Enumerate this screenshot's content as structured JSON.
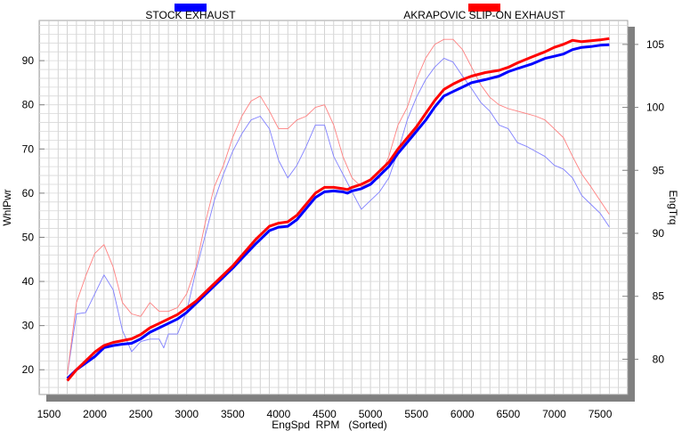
{
  "chart_data": {
    "type": "line",
    "title": "",
    "xlabel": "EngSpd  RPM   (Sorted)",
    "ylabel_left": "WhlPwr",
    "ylabel_right": "EngTrq",
    "xlim": [
      1394,
      7800
    ],
    "ylim_left": [
      14.4,
      99.1
    ],
    "ylim_right": [
      77.2,
      106.9
    ],
    "x_ticks": [
      1500,
      2000,
      2500,
      3000,
      3500,
      4000,
      4500,
      5000,
      5500,
      6000,
      6500,
      7000,
      7500
    ],
    "y_left_ticks": [
      20,
      30,
      40,
      50,
      60,
      70,
      80,
      90
    ],
    "y_right_ticks": [
      80,
      85,
      90,
      95,
      100,
      105
    ],
    "grid": true,
    "legend": [
      {
        "label": "STOCK EXHAUST",
        "color": "#0000ff"
      },
      {
        "label": "AKRAPOVIC SLIP-ON EXHAUST",
        "color": "#ff0000"
      }
    ],
    "legend_position": "top",
    "series": [
      {
        "name": "STOCK EXHAUST WhlPwr",
        "axis": "left",
        "color": "#0000ff",
        "width": "thick",
        "x": [
          1700,
          1800,
          1900,
          2000,
          2100,
          2200,
          2300,
          2400,
          2500,
          2600,
          2700,
          2800,
          2900,
          3000,
          3100,
          3250,
          3500,
          3750,
          3900,
          4000,
          4100,
          4200,
          4300,
          4400,
          4500,
          4600,
          4700,
          4750,
          4800,
          4900,
          5000,
          5100,
          5200,
          5300,
          5400,
          5500,
          5600,
          5700,
          5800,
          5900,
          6000,
          6100,
          6250,
          6400,
          6500,
          6600,
          6750,
          6900,
          7000,
          7100,
          7200,
          7300,
          7400,
          7500,
          7600
        ],
        "y": [
          18,
          20,
          21.5,
          23,
          25,
          25.5,
          25.8,
          26,
          27,
          28.5,
          29.5,
          30.5,
          31.5,
          33,
          35,
          38,
          43,
          48.5,
          51.5,
          52.3,
          52.5,
          54,
          56.5,
          59,
          60.3,
          60.5,
          60.3,
          60,
          60.5,
          61,
          62,
          64,
          66,
          69,
          71.5,
          74,
          76.5,
          79.5,
          82,
          83,
          84,
          85,
          85.7,
          86.5,
          87.5,
          88.2,
          89.2,
          90.5,
          91,
          91.5,
          92.5,
          93,
          93.2,
          93.5,
          93.6
        ]
      },
      {
        "name": "AKRAPOVIC SLIP-ON EXHAUST WhlPwr",
        "axis": "left",
        "color": "#ff0000",
        "width": "thick",
        "x": [
          1700,
          1800,
          1900,
          2000,
          2100,
          2200,
          2300,
          2400,
          2500,
          2600,
          2700,
          2800,
          2900,
          3000,
          3100,
          3250,
          3500,
          3750,
          3900,
          4000,
          4100,
          4200,
          4300,
          4400,
          4500,
          4600,
          4700,
          4750,
          4800,
          4900,
          5000,
          5100,
          5200,
          5300,
          5400,
          5500,
          5600,
          5700,
          5800,
          5900,
          6000,
          6100,
          6250,
          6400,
          6500,
          6600,
          6750,
          6900,
          7000,
          7100,
          7200,
          7300,
          7400,
          7500,
          7600
        ],
        "y": [
          17.5,
          20,
          22,
          24,
          25.5,
          26.2,
          26.6,
          27,
          28,
          29.5,
          30.5,
          31.5,
          32.5,
          34,
          35.5,
          38.5,
          43.5,
          49.5,
          52.5,
          53.2,
          53.5,
          55,
          57.5,
          60,
          61.3,
          61.3,
          61,
          60.8,
          61.3,
          62,
          63,
          65,
          67,
          70,
          72.5,
          75,
          78,
          81,
          83.5,
          84.7,
          85.7,
          86.5,
          87.3,
          87.8,
          88.5,
          89.5,
          90.8,
          92,
          93,
          93.7,
          94.6,
          94.3,
          94.5,
          94.7,
          95
        ]
      },
      {
        "name": "STOCK EXHAUST EngTrq",
        "axis": "right",
        "color": "#8080ff",
        "width": "thin",
        "x": [
          1700,
          1800,
          1900,
          2000,
          2100,
          2200,
          2300,
          2400,
          2500,
          2600,
          2700,
          2750,
          2800,
          2900,
          3000,
          3100,
          3200,
          3300,
          3400,
          3500,
          3600,
          3700,
          3800,
          3900,
          4000,
          4100,
          4200,
          4300,
          4400,
          4500,
          4600,
          4700,
          4800,
          4900,
          5000,
          5100,
          5200,
          5300,
          5400,
          5500,
          5600,
          5700,
          5800,
          5900,
          6000,
          6100,
          6200,
          6300,
          6400,
          6500,
          6600,
          6700,
          6800,
          6900,
          7000,
          7100,
          7200,
          7300,
          7400,
          7500,
          7600
        ],
        "y": [
          78.8,
          83.6,
          83.7,
          85.2,
          86.7,
          85.5,
          82.3,
          80.6,
          81.4,
          81.6,
          81.6,
          80.9,
          82,
          82,
          83.8,
          87,
          89.8,
          92.6,
          94.7,
          96.5,
          97.9,
          99,
          99.3,
          98.3,
          95.8,
          94.4,
          95.4,
          96.9,
          98.6,
          98.6,
          96.1,
          94.7,
          93.3,
          91.9,
          92.6,
          93.3,
          94.4,
          96.5,
          99,
          100.8,
          102.2,
          103.2,
          103.9,
          103.6,
          102.5,
          101.5,
          100.4,
          99.7,
          98.6,
          98.3,
          97.2,
          96.9,
          96.5,
          96.1,
          95.4,
          95.1,
          94.4,
          93,
          92.3,
          91.6,
          90.5
        ]
      },
      {
        "name": "AKRAPOVIC SLIP-ON EXHAUST EngTrq",
        "axis": "right",
        "color": "#ff8080",
        "width": "thin",
        "x": [
          1700,
          1800,
          1900,
          2000,
          2100,
          2200,
          2300,
          2400,
          2500,
          2600,
          2700,
          2800,
          2900,
          3000,
          3100,
          3200,
          3300,
          3400,
          3500,
          3600,
          3700,
          3800,
          3900,
          4000,
          4100,
          4200,
          4300,
          4400,
          4500,
          4600,
          4700,
          4800,
          4900,
          5000,
          5100,
          5200,
          5300,
          5400,
          5500,
          5600,
          5700,
          5800,
          5900,
          6000,
          6100,
          6200,
          6300,
          6400,
          6500,
          6600,
          6700,
          6800,
          6900,
          7000,
          7100,
          7200,
          7300,
          7400,
          7500,
          7600
        ],
        "y": [
          78.8,
          84.5,
          86.6,
          88.4,
          89.1,
          87.3,
          84.5,
          83.6,
          83.4,
          84.5,
          83.8,
          83.8,
          84.1,
          85.2,
          87.3,
          90.8,
          93.7,
          95.4,
          97.6,
          99.3,
          100.5,
          100.9,
          99.7,
          98.3,
          98.3,
          99,
          99.3,
          100,
          100.2,
          98.6,
          96.1,
          94.4,
          93.7,
          94,
          94.4,
          96.1,
          98.6,
          100,
          102.2,
          103.9,
          105,
          105.4,
          105.4,
          104.6,
          103.2,
          101.8,
          100.8,
          100.2,
          99.9,
          99.7,
          99.5,
          99.3,
          99,
          98.3,
          97.6,
          96.1,
          94.7,
          93.7,
          92.6,
          91.5
        ]
      }
    ]
  }
}
